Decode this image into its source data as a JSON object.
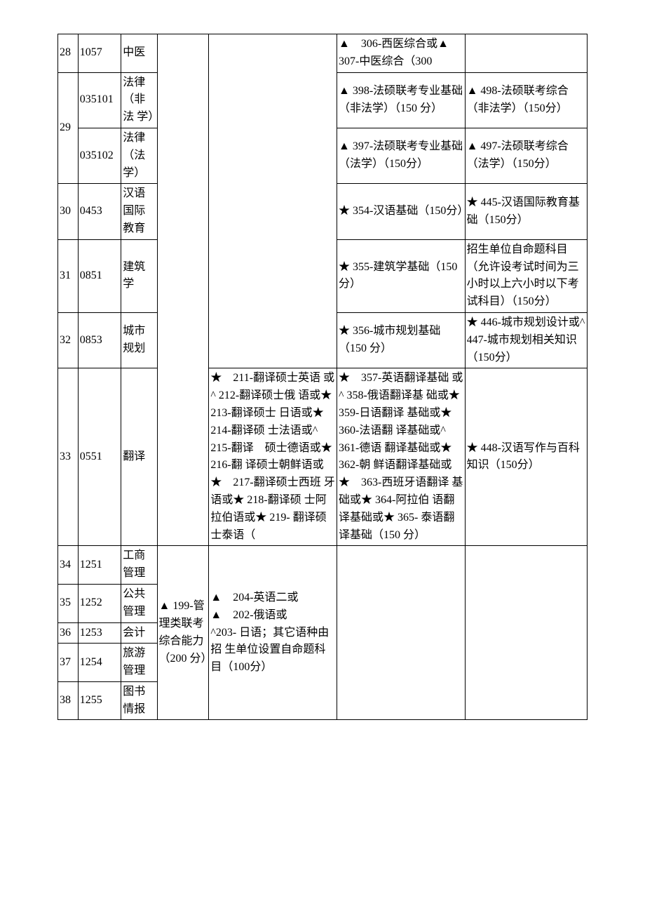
{
  "rows": {
    "r28": {
      "idx": "28",
      "code": "1057",
      "name": "中医",
      "c6": "▲　306-西医综合或▲　307-中医综合（300"
    },
    "r29a": {
      "idx": "29",
      "code": "035101",
      "name": "法律（非法 学）",
      "c6": "▲  398-法硕联考专业基础（非法学）（150 分）",
      "c7": "▲ 498-法硕联考综合（非法学）（150分）"
    },
    "r29b": {
      "code": "035102",
      "name": "法律（法学）",
      "c6": "▲  397-法硕联考专业基础（法学）（150分）",
      "c7": "▲ 497-法硕联考综合（法学）（150分）"
    },
    "r30": {
      "idx": "30",
      "code": "0453",
      "name": "汉语国际教育",
      "c6": "★ 354-汉语基础（150分）",
      "c7": "★ 445-汉语国际教育基础（150分）"
    },
    "r31": {
      "idx": "31",
      "code": "0851",
      "name": "建筑学",
      "c6": "★ 355-建筑学基础（150 分）",
      "c7": "招生单位自命题科目（允许设考试时间为三小时以上六小时以下考试科目）（150分）"
    },
    "r32": {
      "idx": "32",
      "code": "0853",
      "name": "城市规划",
      "c6": "★ 356-城市规划基础（150 分）",
      "c7": "★ 446-城市规划设计或^ 447-城市规划相关知识（150分）"
    },
    "r33": {
      "idx": "33",
      "code": "0551",
      "name": "翻译",
      "c5": "★　211-翻译硕士英语  或^ 212-翻译硕士俄 语或★ 213-翻译硕士 日语或★ 214-翻译硕  士法语或^ 215-翻译　硕士德语或★ 216-翻  译硕士朝鲜语或\n★　217-翻译硕士西班 牙语或★ 218-翻译硕  士阿拉伯语或★ 219-  翻译硕士泰语（",
      "c6": "★　357-英语翻译基础  或^ 358-俄语翻译基 础或★ 359-日语翻译 基础或★ 360-法语翻  译基础或^ 361-德语 翻译基础或★ 362-朝 鲜语翻译基础或\n★　363-西班牙语翻译 基础或★ 364-阿拉伯  语翻译基础或★ 365-  泰语翻译基础（150 分）",
      "c7": "★ 448-汉语写作与百科知识（150分）"
    },
    "r34": {
      "idx": "34",
      "code": "1251",
      "name": "工商管理",
      "c4": "▲ 199-管理类联考综合能力（200 分）",
      "c5": "▲　204-英语二或\n▲　202-俄语或\n^203- 日语；其它语种由招  生单位设置自命题科  目（100分）"
    },
    "r35": {
      "idx": "35",
      "code": "1252",
      "name": "公共管理"
    },
    "r36": {
      "idx": "36",
      "code": "1253",
      "name": "会计"
    },
    "r37": {
      "idx": "37",
      "code": "1254",
      "name": "旅游管理"
    },
    "r38": {
      "idx": "38",
      "code": "1255",
      "name": "图书情报"
    }
  }
}
